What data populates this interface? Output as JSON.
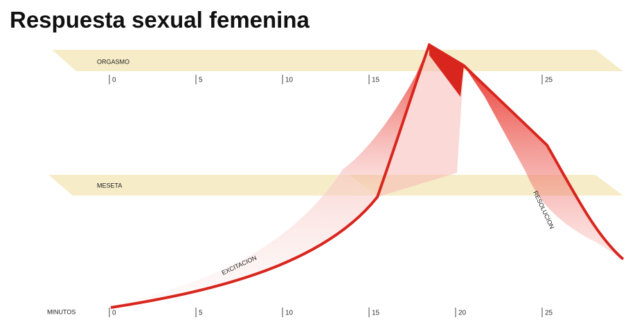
{
  "title": "Respuesta sexual femenina",
  "levels": [
    "ORGASMO",
    "MESETA"
  ],
  "phases": [
    "EXCITACION",
    "RESOLUCION"
  ],
  "top_ticks": [
    0,
    5,
    10,
    15,
    25
  ],
  "axis": {
    "label": "MINUTOS",
    "ticks": [
      0,
      5,
      10,
      15,
      20,
      25
    ]
  }
}
